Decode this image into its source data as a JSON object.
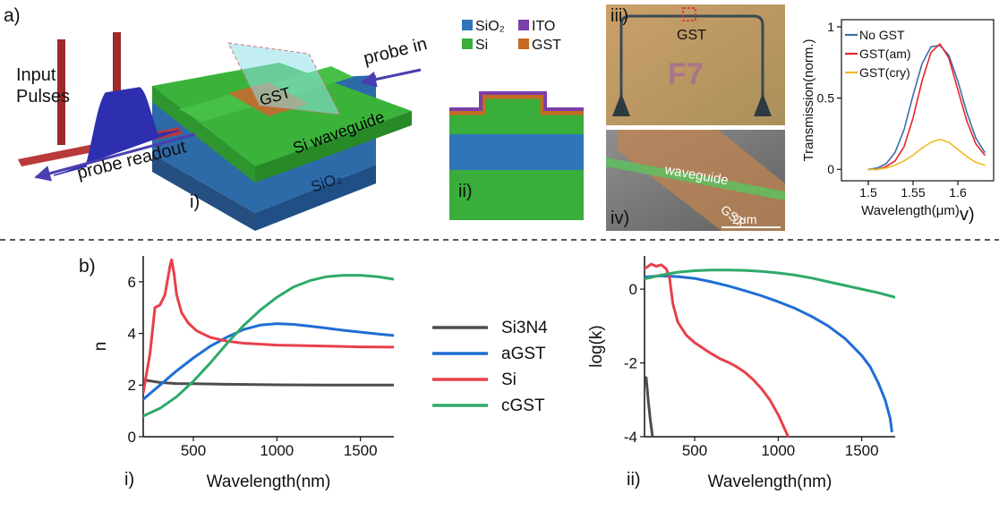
{
  "panel_a": {
    "label": "a)",
    "device": {
      "input_pulses": "Input\nPulses",
      "probe_in": "probe in",
      "probe_readout": "probe readout",
      "gst": "GST",
      "si_waveguide": "Si waveguide",
      "sio2": "SiO₂",
      "sub": "i)"
    },
    "cross_section": {
      "legend": [
        "SiO₂",
        "ITO",
        "Si",
        "GST"
      ],
      "legend_colors": [
        "#2f76b8",
        "#7b3fa8",
        "#3aae3a",
        "#c46a22"
      ],
      "sub": "ii)"
    },
    "micrograph_top": {
      "sub": "iii)",
      "gst": "GST",
      "chip": "F7"
    },
    "micrograph_bottom": {
      "sub": "iv)",
      "waveguide": "waveguide",
      "gst": "GST",
      "scale": "2μm"
    },
    "transmission": {
      "sub": "v)"
    }
  },
  "panel_b": {
    "label": "b)",
    "legend": [
      "Si3N4",
      "aGST",
      "Si",
      "cGST"
    ],
    "sub_left": "i)",
    "sub_right": "ii)"
  },
  "chart_data": [
    {
      "type": "line",
      "id": "transmission-spectrum",
      "xlabel": "Wavelength(μm)",
      "ylabel": "Transmission(norm.)",
      "xlim": [
        1.47,
        1.64
      ],
      "ylim": [
        -0.08,
        1.05
      ],
      "xticks": [
        "1.5",
        "1.55",
        "1.6"
      ],
      "xtick_values": [
        1.5,
        1.55,
        1.6
      ],
      "yticks": [
        "0",
        "0.5",
        "1"
      ],
      "ytick_values": [
        0,
        0.5,
        1
      ],
      "legend_position": "top-left",
      "series": [
        {
          "name": "No GST",
          "color": "#3a6fa8",
          "x": [
            1.5,
            1.51,
            1.52,
            1.53,
            1.54,
            1.55,
            1.56,
            1.57,
            1.58,
            1.59,
            1.6,
            1.61,
            1.62,
            1.63
          ],
          "y": [
            0.0,
            0.01,
            0.04,
            0.12,
            0.28,
            0.52,
            0.74,
            0.86,
            0.87,
            0.8,
            0.62,
            0.4,
            0.22,
            0.12
          ]
        },
        {
          "name": "GST(am)",
          "color": "#e8262a",
          "x": [
            1.5,
            1.51,
            1.52,
            1.53,
            1.54,
            1.55,
            1.56,
            1.57,
            1.58,
            1.59,
            1.6,
            1.61,
            1.62,
            1.63
          ],
          "y": [
            0.0,
            0.0,
            0.02,
            0.06,
            0.16,
            0.36,
            0.62,
            0.82,
            0.88,
            0.78,
            0.56,
            0.34,
            0.18,
            0.1
          ]
        },
        {
          "name": "GST(cry)",
          "color": "#f2b824",
          "x": [
            1.5,
            1.51,
            1.52,
            1.53,
            1.54,
            1.55,
            1.56,
            1.57,
            1.58,
            1.59,
            1.6,
            1.61,
            1.62,
            1.63
          ],
          "y": [
            0.0,
            0.0,
            0.01,
            0.03,
            0.06,
            0.1,
            0.15,
            0.19,
            0.21,
            0.19,
            0.14,
            0.09,
            0.05,
            0.03
          ]
        }
      ]
    },
    {
      "type": "line",
      "id": "refractive-index-n",
      "xlabel": "Wavelength(nm)",
      "ylabel": "n",
      "xlim": [
        200,
        1700
      ],
      "ylim": [
        0,
        7
      ],
      "xticks": [
        "500",
        "1000",
        "1500"
      ],
      "xtick_values": [
        500,
        1000,
        1500
      ],
      "yticks": [
        "0",
        "2",
        "4",
        "6"
      ],
      "ytick_values": [
        0,
        2,
        4,
        6
      ],
      "series": [
        {
          "name": "Si3N4",
          "color": "#4d4d4d",
          "x": [
            200,
            300,
            400,
            500,
            700,
            1000,
            1300,
            1700
          ],
          "y": [
            2.2,
            2.1,
            2.06,
            2.05,
            2.03,
            2.01,
            2.0,
            2.0
          ]
        },
        {
          "name": "aGST",
          "color": "#1f6ed4",
          "x": [
            200,
            300,
            400,
            500,
            600,
            700,
            800,
            900,
            1000,
            1100,
            1200,
            1300,
            1400,
            1500,
            1600,
            1700
          ],
          "y": [
            1.45,
            2.0,
            2.55,
            3.05,
            3.5,
            3.85,
            4.15,
            4.32,
            4.38,
            4.35,
            4.28,
            4.2,
            4.12,
            4.05,
            3.98,
            3.92
          ]
        },
        {
          "name": "Si",
          "color": "#e8404a",
          "x": [
            200,
            240,
            270,
            300,
            330,
            360,
            370,
            385,
            400,
            430,
            470,
            520,
            600,
            700,
            800,
            1000,
            1200,
            1500,
            1700
          ],
          "y": [
            1.7,
            3.2,
            5.0,
            5.1,
            5.5,
            6.6,
            6.85,
            6.3,
            5.5,
            4.8,
            4.4,
            4.1,
            3.85,
            3.7,
            3.62,
            3.55,
            3.52,
            3.48,
            3.47
          ]
        },
        {
          "name": "cGST",
          "color": "#2eaa6a",
          "x": [
            200,
            300,
            400,
            500,
            600,
            700,
            800,
            900,
            1000,
            1100,
            1200,
            1300,
            1400,
            1500,
            1600,
            1700
          ],
          "y": [
            0.8,
            1.1,
            1.55,
            2.15,
            2.85,
            3.6,
            4.3,
            4.9,
            5.4,
            5.8,
            6.05,
            6.2,
            6.25,
            6.25,
            6.2,
            6.1
          ]
        }
      ]
    },
    {
      "type": "line",
      "id": "extinction-log-k",
      "xlabel": "Wavelength(nm)",
      "ylabel": "log(k)",
      "xlim": [
        200,
        1700
      ],
      "ylim": [
        -4,
        0.9
      ],
      "xticks": [
        "500",
        "1000",
        "1500"
      ],
      "xtick_values": [
        500,
        1000,
        1500
      ],
      "yticks": [
        "-4",
        "-2",
        "0"
      ],
      "ytick_values": [
        -4,
        -2,
        0
      ],
      "series": [
        {
          "name": "Si3N4",
          "color": "#4d4d4d",
          "x": [
            210,
            222,
            235,
            248
          ],
          "y": [
            -2.4,
            -3.0,
            -3.55,
            -4.0
          ]
        },
        {
          "name": "aGST",
          "color": "#1f6ed4",
          "x": [
            200,
            300,
            400,
            500,
            600,
            700,
            800,
            900,
            1000,
            1100,
            1200,
            1300,
            1400,
            1500,
            1550,
            1600,
            1640,
            1670,
            1680
          ],
          "y": [
            0.33,
            0.36,
            0.34,
            0.29,
            0.2,
            0.09,
            -0.04,
            -0.18,
            -0.34,
            -0.52,
            -0.74,
            -1.0,
            -1.34,
            -1.8,
            -2.1,
            -2.55,
            -3.0,
            -3.5,
            -3.85
          ]
        },
        {
          "name": "Si",
          "color": "#e8404a",
          "x": [
            200,
            240,
            270,
            300,
            330,
            350,
            370,
            400,
            450,
            500,
            550,
            600,
            650,
            700,
            750,
            800,
            850,
            900,
            950,
            1000,
            1030,
            1060
          ],
          "y": [
            0.55,
            0.68,
            0.62,
            0.66,
            0.55,
            0.3,
            -0.4,
            -0.9,
            -1.25,
            -1.45,
            -1.6,
            -1.75,
            -1.88,
            -1.98,
            -2.1,
            -2.25,
            -2.45,
            -2.7,
            -3.0,
            -3.4,
            -3.7,
            -4.0
          ]
        },
        {
          "name": "cGST",
          "color": "#2eaa6a",
          "x": [
            200,
            300,
            400,
            500,
            600,
            700,
            800,
            900,
            1000,
            1100,
            1200,
            1300,
            1400,
            1500,
            1600,
            1700
          ],
          "y": [
            0.28,
            0.38,
            0.46,
            0.5,
            0.52,
            0.52,
            0.51,
            0.48,
            0.44,
            0.38,
            0.3,
            0.2,
            0.1,
            0.0,
            -0.1,
            -0.22
          ]
        }
      ]
    }
  ]
}
